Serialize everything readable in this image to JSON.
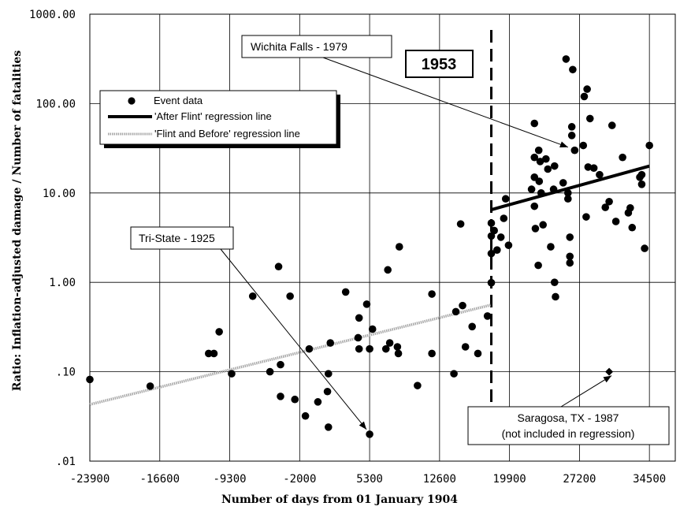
{
  "chart_data": {
    "type": "scatter",
    "xlabel": "Number of days from 01 January 1904",
    "ylabel": "Ratio:  Inflation-adjusted damage / Number of fatalities",
    "y_scale": "log",
    "xlim": [
      -23900,
      37200
    ],
    "ylim": [
      0.01,
      1000
    ],
    "x_ticks": [
      -23900,
      -16600,
      -9300,
      -2000,
      5300,
      12600,
      19900,
      27200,
      34500
    ],
    "x_tick_labels": [
      "-23900",
      "-16600",
      "-9300",
      "-2000",
      "5300",
      "12600",
      "19900",
      "27200",
      "34500"
    ],
    "y_ticks": [
      0.01,
      0.1,
      1,
      10,
      100,
      1000
    ],
    "y_tick_labels": [
      ".01",
      ".10",
      "1.00",
      "10.00",
      "100.00",
      "1000.00"
    ],
    "grid": true,
    "legend": {
      "position": "top-left",
      "entries": [
        {
          "label": "Event data",
          "marker": "filled-circle"
        },
        {
          "label": "'After Flint' regression line",
          "style": "thick-solid"
        },
        {
          "label": "'Flint and Before' regression line",
          "style": "dotted-gray"
        }
      ]
    },
    "series": [
      {
        "name": "Event data",
        "marker": "circle",
        "color": "#000000",
        "points": [
          [
            -23900,
            0.082
          ],
          [
            -17600,
            0.069
          ],
          [
            -11500,
            0.16
          ],
          [
            -10950,
            0.16
          ],
          [
            -10400,
            0.28
          ],
          [
            -9100,
            0.095
          ],
          [
            -6900,
            0.7
          ],
          [
            -5100,
            0.1
          ],
          [
            -4200,
            1.5
          ],
          [
            -4000,
            0.053
          ],
          [
            -4000,
            0.12
          ],
          [
            -3000,
            0.7
          ],
          [
            -2500,
            0.049
          ],
          [
            -1400,
            0.032
          ],
          [
            -1000,
            0.18
          ],
          [
            -100,
            0.046
          ],
          [
            900,
            0.06
          ],
          [
            1000,
            0.024
          ],
          [
            1000,
            0.095
          ],
          [
            1200,
            0.21
          ],
          [
            2800,
            0.78
          ],
          [
            4100,
            0.24
          ],
          [
            4200,
            0.18
          ],
          [
            4200,
            0.4
          ],
          [
            5000,
            0.57
          ],
          [
            5300,
            0.02
          ],
          [
            5300,
            0.18
          ],
          [
            5600,
            0.3
          ],
          [
            7000,
            0.18
          ],
          [
            7200,
            1.38
          ],
          [
            7400,
            0.21
          ],
          [
            8200,
            0.19
          ],
          [
            8300,
            0.16
          ],
          [
            8400,
            2.5
          ],
          [
            10300,
            0.07
          ],
          [
            11800,
            0.74
          ],
          [
            11800,
            0.16
          ],
          [
            14100,
            0.095
          ],
          [
            14300,
            0.47
          ],
          [
            14800,
            4.5
          ],
          [
            15000,
            0.55
          ],
          [
            15300,
            0.19
          ],
          [
            16000,
            0.32
          ],
          [
            16600,
            0.16
          ],
          [
            17600,
            0.42
          ],
          [
            18000,
            2.1
          ],
          [
            18000,
            3.3
          ],
          [
            18000,
            4.6
          ],
          [
            18000,
            0.99
          ],
          [
            18300,
            3.8
          ],
          [
            18600,
            2.3
          ],
          [
            19000,
            3.2
          ],
          [
            19300,
            5.2
          ],
          [
            19500,
            8.6
          ],
          [
            19800,
            2.6
          ],
          [
            22200,
            11
          ],
          [
            22500,
            60
          ],
          [
            22500,
            15
          ],
          [
            22500,
            25
          ],
          [
            22500,
            7.1
          ],
          [
            22600,
            4
          ],
          [
            22900,
            1.55
          ],
          [
            22950,
            30
          ],
          [
            23000,
            13.5
          ],
          [
            23100,
            22.5
          ],
          [
            23200,
            10
          ],
          [
            23400,
            4.4
          ],
          [
            23700,
            24
          ],
          [
            23900,
            18.5
          ],
          [
            24200,
            2.5
          ],
          [
            24500,
            11
          ],
          [
            24600,
            20
          ],
          [
            24600,
            1
          ],
          [
            24700,
            0.69
          ],
          [
            25500,
            13
          ],
          [
            25800,
            315
          ],
          [
            26000,
            10
          ],
          [
            26000,
            8.6
          ],
          [
            26200,
            3.2
          ],
          [
            26200,
            1.95
          ],
          [
            26200,
            1.65
          ],
          [
            26400,
            55
          ],
          [
            26400,
            44
          ],
          [
            26500,
            240
          ],
          [
            26700,
            30
          ],
          [
            27600,
            34
          ],
          [
            27700,
            120
          ],
          [
            27900,
            5.4
          ],
          [
            28000,
            145
          ],
          [
            28100,
            19.5
          ],
          [
            28300,
            68
          ],
          [
            28700,
            19
          ],
          [
            29300,
            16
          ],
          [
            29900,
            6.9
          ],
          [
            30300,
            8
          ],
          [
            30600,
            57
          ],
          [
            31000,
            4.8
          ],
          [
            31700,
            25
          ],
          [
            32300,
            6
          ],
          [
            32500,
            6.8
          ],
          [
            32700,
            4.1
          ],
          [
            33500,
            15
          ],
          [
            33700,
            12.5
          ],
          [
            33700,
            16
          ],
          [
            34000,
            2.4
          ],
          [
            34500,
            34
          ]
        ]
      },
      {
        "name": "Saragosa, TX - 1987",
        "marker": "diamond",
        "color": "#000000",
        "points": [
          [
            30300,
            0.1
          ]
        ]
      }
    ],
    "regression_lines": [
      {
        "name": "'After Flint' regression line",
        "x": [
          18000,
          34500
        ],
        "y": [
          6.5,
          20
        ]
      },
      {
        "name": "'Flint and Before' regression line",
        "x": [
          -23900,
          18000
        ],
        "y": [
          0.043,
          0.56
        ]
      }
    ],
    "reference_line": {
      "x": 18000,
      "label": "1953",
      "style": "dashed"
    },
    "annotations": [
      {
        "text": "Wichita Falls - 1979",
        "target": [
          26500,
          30
        ]
      },
      {
        "text": "Tri-State - 1925",
        "target": [
          5300,
          0.02
        ]
      },
      {
        "text": "Saragosa, TX - 1987",
        "text2": "(not included in regression)",
        "target": [
          30300,
          0.1
        ]
      }
    ]
  }
}
